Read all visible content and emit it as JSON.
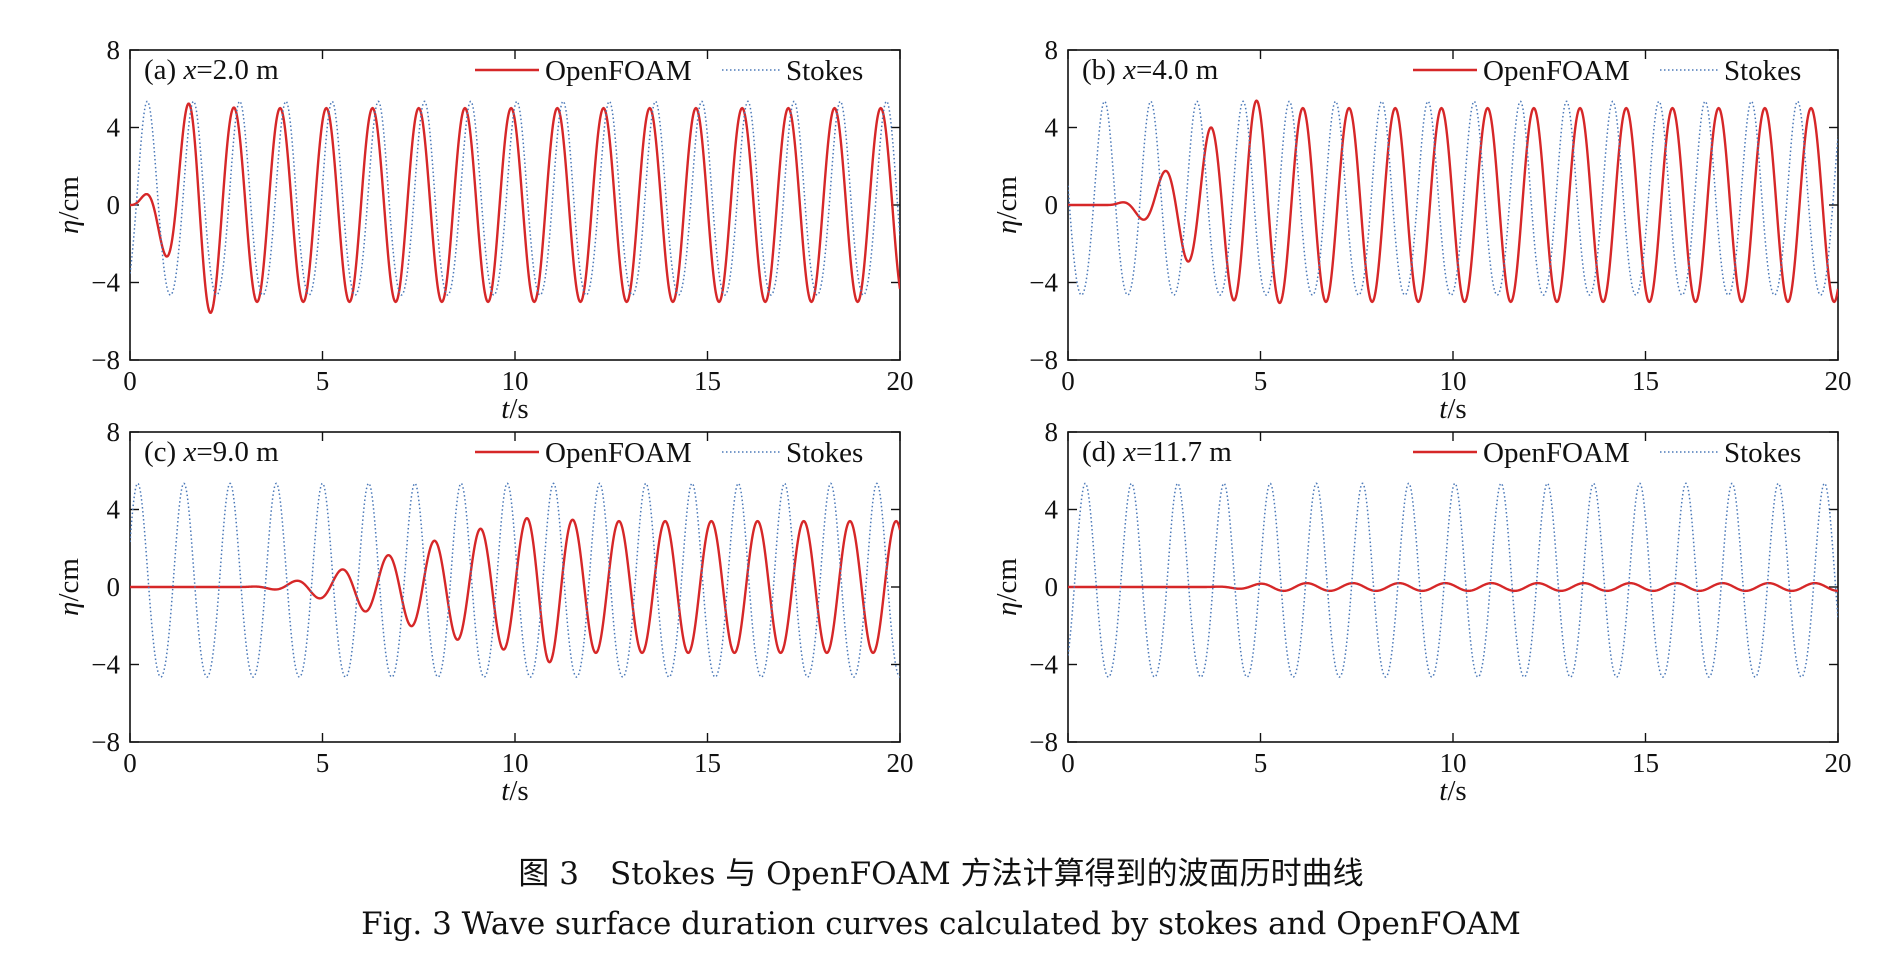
{
  "figure": {
    "caption_cn": "图 3　Stokes 与 OpenFOAM 方法计算得到的波面历时曲线",
    "caption_en": "Fig. 3  Wave surface duration curves calculated by stokes and OpenFOAM"
  },
  "colors": {
    "openfoam": "#d62728",
    "stokes": "#4a78b8",
    "axis": "#111111"
  },
  "chart_data": [
    {
      "type": "line",
      "panel": "(a)",
      "label_prefix": "(a) ",
      "label_var": "x",
      "label_value": "=2.0 m",
      "xlabel_var": "t",
      "xlabel_unit": "/s",
      "ylabel_var": "η",
      "ylabel_unit": "/cm",
      "xlim": [
        0,
        20
      ],
      "ylim": [
        -8,
        8
      ],
      "xticks": [
        "0",
        "5",
        "10",
        "15",
        "20"
      ],
      "yticks": [
        "−8",
        "−4",
        "0",
        "4",
        "8"
      ],
      "legend_placement": "top-right",
      "series": [
        {
          "name": "OpenFOAM",
          "style": "solid",
          "amplitude": 5.0,
          "period": 1.2,
          "arrival_time": 0.0,
          "ramp_duration": 1.8,
          "peak_overshoot": 5.8
        },
        {
          "name": "Stokes",
          "style": "dotted",
          "amplitude": 5.0,
          "period": 1.2,
          "phase_offset": 0.45
        }
      ]
    },
    {
      "type": "line",
      "panel": "(b)",
      "label_prefix": "(b) ",
      "label_var": "x",
      "label_value": "=4.0 m",
      "xlabel_var": "t",
      "xlabel_unit": "/s",
      "ylabel_var": "η",
      "ylabel_unit": "/cm",
      "xlim": [
        0,
        20
      ],
      "ylim": [
        -8,
        8
      ],
      "xticks": [
        "0",
        "5",
        "10",
        "15",
        "20"
      ],
      "yticks": [
        "−8",
        "−4",
        "0",
        "4",
        "8"
      ],
      "legend_placement": "top-right",
      "series": [
        {
          "name": "OpenFOAM",
          "style": "solid",
          "amplitude": 5.0,
          "period": 1.2,
          "arrival_time": 1.0,
          "ramp_duration": 3.8,
          "peak_overshoot": 5.4
        },
        {
          "name": "Stokes",
          "style": "dotted",
          "amplitude": 5.0,
          "period": 1.2,
          "phase_offset": 0.95
        }
      ]
    },
    {
      "type": "line",
      "panel": "(c)",
      "label_prefix": "(c) ",
      "label_var": "x",
      "label_value": "=9.0 m",
      "xlabel_var": "t",
      "xlabel_unit": "/s",
      "ylabel_var": "η",
      "ylabel_unit": "/cm",
      "xlim": [
        0,
        20
      ],
      "ylim": [
        -8,
        8
      ],
      "xticks": [
        "0",
        "5",
        "10",
        "15",
        "20"
      ],
      "yticks": [
        "−8",
        "−4",
        "0",
        "4",
        "8"
      ],
      "legend_placement": "top-right",
      "series": [
        {
          "name": "OpenFOAM",
          "style": "solid",
          "amplitude": 3.4,
          "period": 1.2,
          "arrival_time": 2.8,
          "ramp_duration": 8.0,
          "peak_overshoot": 3.9
        },
        {
          "name": "Stokes",
          "style": "dotted",
          "amplitude": 5.0,
          "period": 1.2,
          "phase_offset": 0.2
        }
      ]
    },
    {
      "type": "line",
      "panel": "(d)",
      "label_prefix": "(d) ",
      "label_var": "x",
      "label_value": "=11.7 m",
      "xlabel_var": "t",
      "xlabel_unit": "/s",
      "ylabel_var": "η",
      "ylabel_unit": "/cm",
      "xlim": [
        0,
        20
      ],
      "ylim": [
        -8,
        8
      ],
      "xticks": [
        "0",
        "5",
        "10",
        "15",
        "20"
      ],
      "yticks": [
        "−8",
        "−4",
        "0",
        "4",
        "8"
      ],
      "legend_placement": "top-right",
      "series": [
        {
          "name": "OpenFOAM",
          "style": "solid",
          "amplitude": 0.2,
          "period": 1.2,
          "arrival_time": 3.5,
          "ramp_duration": 2.0,
          "peak_overshoot": 0.2
        },
        {
          "name": "Stokes",
          "style": "dotted",
          "amplitude": 5.0,
          "period": 1.2,
          "phase_offset": 0.45
        }
      ]
    }
  ]
}
